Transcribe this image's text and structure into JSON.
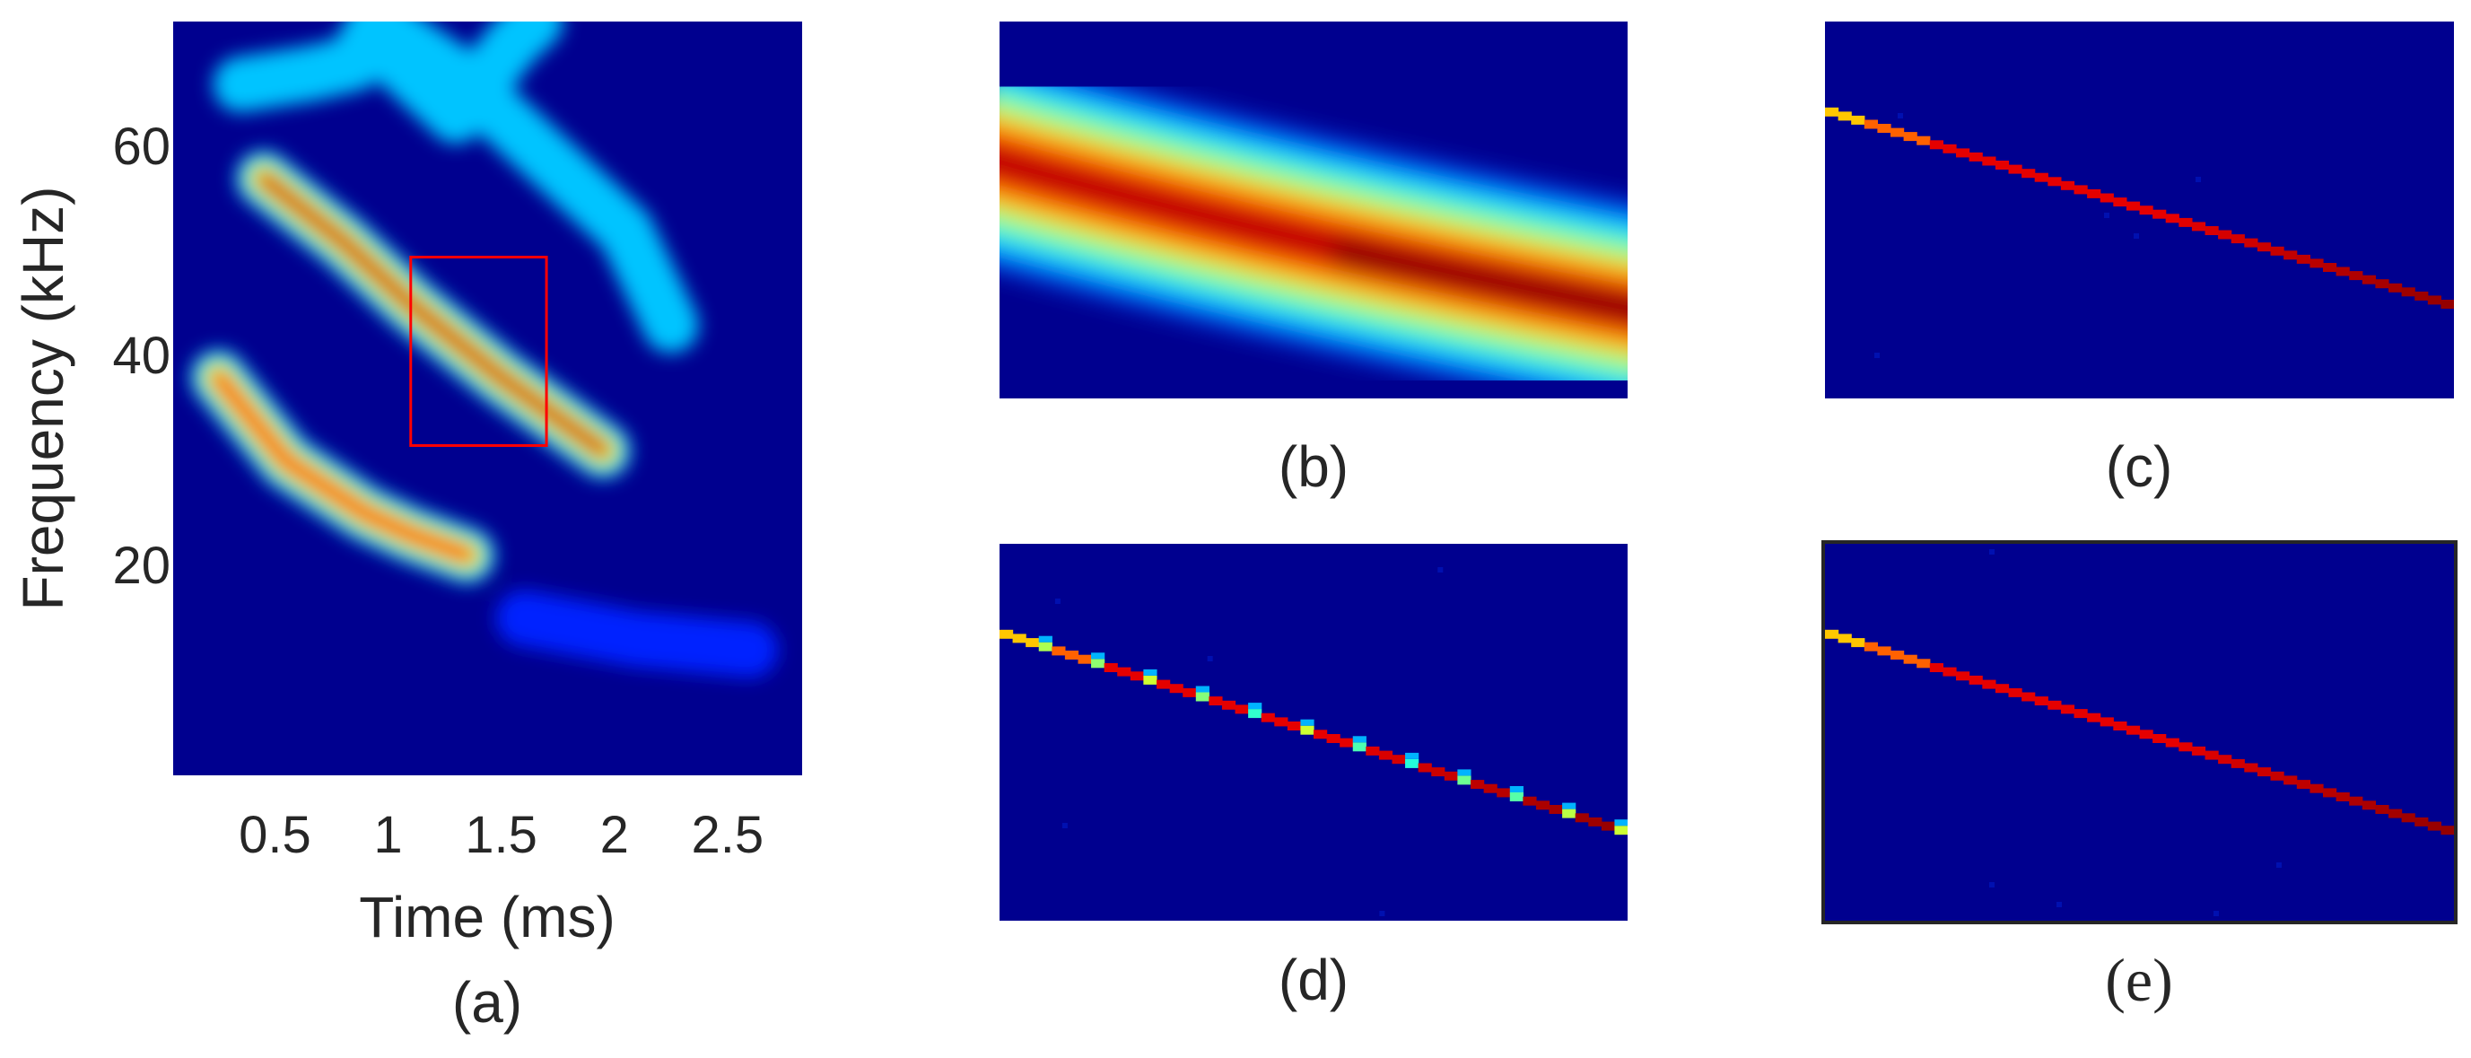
{
  "chart_data": [
    {
      "type": "heatmap",
      "panel": "(a)",
      "xlabel": "Time (ms)",
      "ylabel": "Frequency (kHz)",
      "xlim": [
        0.05,
        2.83
      ],
      "ylim": [
        0,
        72
      ],
      "x_ticks": [
        0.5,
        1,
        1.5,
        2,
        2.5
      ],
      "y_ticks": [
        20,
        40,
        60
      ],
      "colormap": "jet",
      "ridges": [
        {
          "name": "",
          "t": [
            0.25,
            0.55,
            0.9,
            1.1,
            1.35
          ],
          "f": [
            38,
            30,
            25,
            23,
            21
          ],
          "peak": 0.8
        },
        {
          "name": "",
          "t": [
            0.45,
            0.8,
            1.1,
            1.5,
            1.95
          ],
          "f": [
            57,
            51,
            45,
            38,
            31
          ],
          "peak": 1.0
        },
        {
          "name": "",
          "t": [
            0.95,
            1.3,
            1.6,
            2.05,
            2.25
          ],
          "f": [
            72,
            67,
            61,
            52,
            43
          ],
          "peak": 0.35
        },
        {
          "name": "",
          "t": [
            0.35,
            0.65,
            0.85,
            0.95
          ],
          "f": [
            66,
            67,
            68,
            72
          ],
          "peak": 0.3
        },
        {
          "name": "",
          "t": [
            1.0,
            1.3,
            1.55,
            1.65
          ],
          "f": [
            69,
            63,
            70,
            72
          ],
          "peak": 0.3
        },
        {
          "name": "",
          "t": [
            1.6,
            2.1,
            2.6
          ],
          "f": [
            15,
            13,
            12
          ],
          "peak": 0.18
        }
      ],
      "highlight_box": {
        "t": [
          1.1,
          1.7
        ],
        "f": [
          31.5,
          49.5
        ],
        "color": "#ff0000"
      }
    },
    {
      "type": "heatmap",
      "panel": "(b)",
      "colormap": "jet",
      "ridge": {
        "start": [
          0.0,
          0.63
        ],
        "end": [
          1.0,
          0.24
        ],
        "peak_position": 0.8
      }
    },
    {
      "type": "heatmap",
      "panel": "(c)",
      "colormap": "jet",
      "ridge": {
        "start": [
          0.0,
          0.76
        ],
        "end": [
          1.0,
          0.25
        ],
        "width": "single-bin",
        "start_color": "#ffd21e",
        "end_color": "#7a0000"
      }
    },
    {
      "type": "heatmap",
      "panel": "(d)",
      "colormap": "jet",
      "ridge": {
        "start": [
          0.0,
          0.76
        ],
        "end": [
          1.0,
          0.24
        ],
        "width": "single-bin",
        "speckled": true
      }
    },
    {
      "type": "heatmap",
      "panel": "(e)",
      "colormap": "jet",
      "ridge": {
        "start": [
          0.0,
          0.76
        ],
        "end": [
          1.0,
          0.24
        ],
        "width": "single-bin",
        "start_color": "#ffd21e",
        "end_color": "#7a0000"
      }
    }
  ],
  "captions": {
    "a": "(a)",
    "b": "(b)",
    "c": "(c)",
    "d": "(d)",
    "e": "(e)"
  },
  "colors": {
    "background": "#00008f",
    "highlight": "#ff0000",
    "text": "#262626"
  }
}
